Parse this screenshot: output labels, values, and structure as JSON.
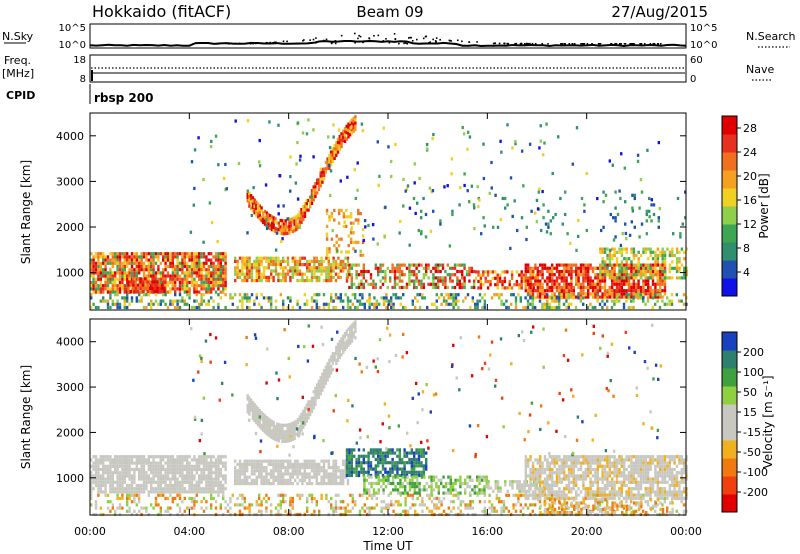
{
  "header": {
    "station": "Hokkaido (fitACF)",
    "beam": "Beam 09",
    "date": "27/Aug/2015"
  },
  "top_panels": {
    "nsky_label": "N.Sky",
    "nsky_ticks": [
      "10^5",
      "10^0"
    ],
    "nsearch_label": "N.Search",
    "freq_label": "Freq.",
    "freq_unit": "[MHz]",
    "freq_ticks": [
      "18",
      "8"
    ],
    "nave_label": "Nave",
    "nave_ticks": [
      "60",
      "0"
    ],
    "cpid_label": "CPID",
    "cpid_value": "rbsp 200"
  },
  "colors": {
    "power_scale": [
      "#1010e8",
      "#2050b0",
      "#2f8f6f",
      "#3ea653",
      "#8fd04a",
      "#f0d020",
      "#f5a020",
      "#f07020",
      "#e83020",
      "#e00000"
    ],
    "velocity_scale": [
      "#e00000",
      "#f04010",
      "#f07a10",
      "#f0b020",
      "#c8c8c0",
      "#c8c8c0",
      "#8fd040",
      "#40a040",
      "#2f7f6f",
      "#1840c0"
    ],
    "ground_scatter": "#c8c8c0"
  },
  "chart_data": [
    {
      "type": "heatmap",
      "title": "Power",
      "xlabel": "Time UT",
      "ylabel": "Slant Range [km]",
      "x_ticks": [
        "00:00",
        "04:00",
        "08:00",
        "12:00",
        "16:00",
        "20:00",
        "00:00"
      ],
      "x_range_hours": [
        0,
        24
      ],
      "y_ticks": [
        1000,
        2000,
        3000,
        4000
      ],
      "y_range_km": [
        180,
        4500
      ],
      "colorbar_label": "Power [dB]",
      "colorbar_ticks": [
        4,
        8,
        12,
        16,
        20,
        24,
        28
      ],
      "colorbar_range": [
        0,
        30
      ]
    },
    {
      "type": "heatmap",
      "title": "Velocity",
      "xlabel": "Time UT",
      "ylabel": "Slant Range [km]",
      "x_ticks": [
        "00:00",
        "04:00",
        "08:00",
        "12:00",
        "16:00",
        "20:00",
        "00:00"
      ],
      "x_range_hours": [
        0,
        24
      ],
      "y_ticks": [
        1000,
        2000,
        3000,
        4000
      ],
      "y_range_km": [
        180,
        4500
      ],
      "colorbar_label": "Velocity [m s⁻¹]",
      "colorbar_ticks": [
        200,
        100,
        50,
        15,
        -15,
        -50,
        -100,
        -200
      ]
    }
  ]
}
